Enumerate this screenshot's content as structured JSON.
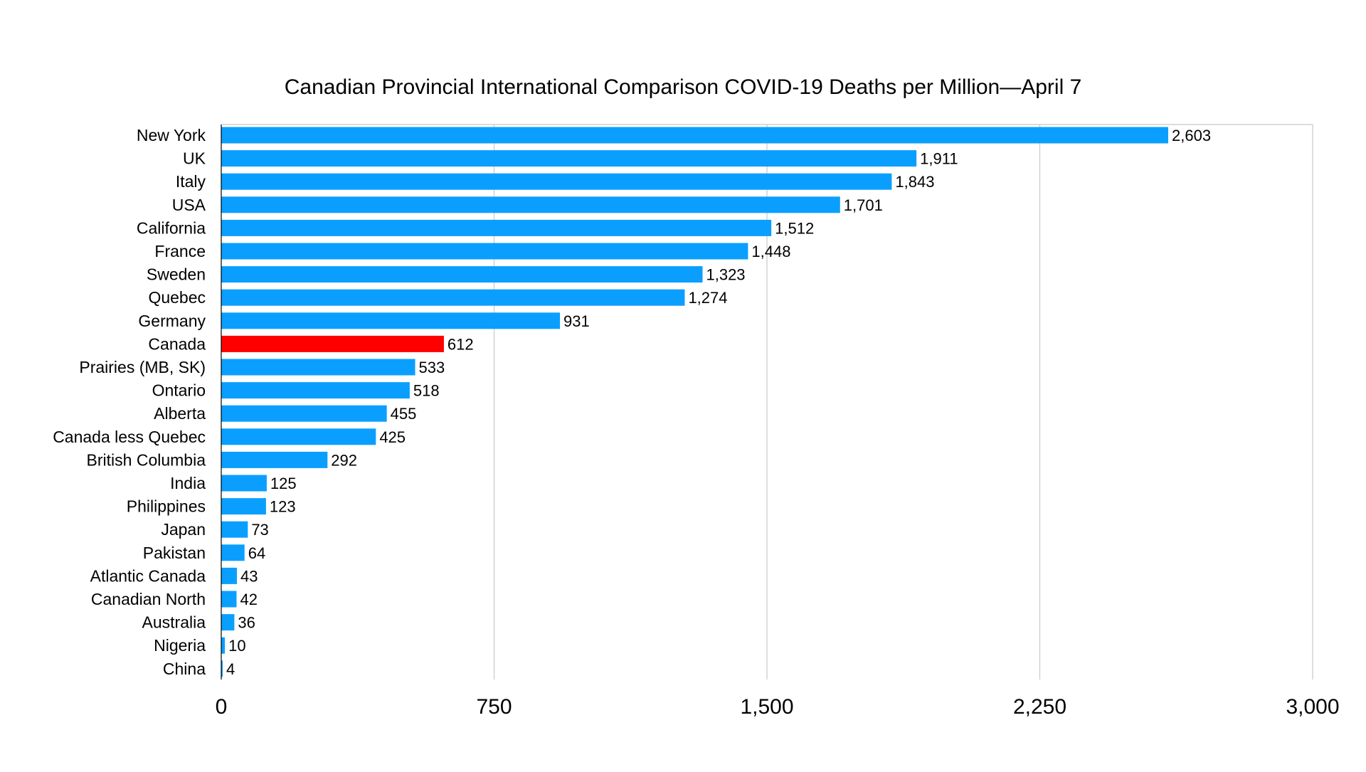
{
  "chart_data": {
    "type": "bar",
    "orientation": "horizontal",
    "title": "Canadian Provincial International Comparison COVID-19 Deaths per Million—April 7",
    "xlabel": "",
    "ylabel": "",
    "xlim": [
      0,
      3000
    ],
    "x_ticks": [
      0,
      750,
      1500,
      2250,
      3000
    ],
    "x_tick_labels": [
      "0",
      "750",
      "1,500",
      "2,250",
      "3,000"
    ],
    "grid": "vertical",
    "legend": "none",
    "categories": [
      "New York",
      "UK",
      "Italy",
      "USA",
      "California",
      "France",
      "Sweden",
      "Quebec",
      "Germany",
      "Canada",
      "Prairies (MB, SK)",
      "Ontario",
      "Alberta",
      "Canada less Quebec",
      "British Columbia",
      "India",
      "Philippines",
      "Japan",
      "Pakistan",
      "Atlantic Canada",
      "Canadian North",
      "Australia",
      "Nigeria",
      "China"
    ],
    "values": [
      2603,
      1911,
      1843,
      1701,
      1512,
      1448,
      1323,
      1274,
      931,
      612,
      533,
      518,
      455,
      425,
      292,
      125,
      123,
      73,
      64,
      43,
      42,
      36,
      10,
      4
    ],
    "value_labels": [
      "2,603",
      "1,911",
      "1,843",
      "1,701",
      "1,512",
      "1,448",
      "1,323",
      "1,274",
      "931",
      "612",
      "533",
      "518",
      "455",
      "425",
      "292",
      "125",
      "123",
      "73",
      "64",
      "43",
      "42",
      "36",
      "10",
      "4"
    ],
    "bar_color": "#0A9FFF",
    "highlight_category": "Canada",
    "highlight_color": "#FF0000"
  }
}
